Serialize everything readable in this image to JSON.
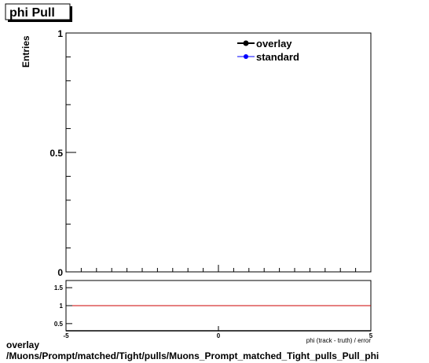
{
  "title_box": "phi Pull",
  "footer": {
    "line1": "overlay",
    "line2": "/Muons/Prompt/matched/Tight/pulls/Muons_Prompt_matched_Tight_pulls_Pull_phi"
  },
  "colors": {
    "overlay": "#000000",
    "standard": "#0000ff",
    "ratio_line": "#cc0000"
  },
  "chart_data": [
    {
      "type": "line",
      "title": "phi Pull",
      "xlabel": "",
      "ylabel": "Entries",
      "ylim": [
        0,
        1
      ],
      "y_ticks": [
        "0",
        "0.5",
        "1"
      ],
      "grid": false,
      "legend_position": "top-right",
      "series": [
        {
          "name": "overlay",
          "values": []
        },
        {
          "name": "standard",
          "values": []
        }
      ]
    },
    {
      "type": "line",
      "xlabel": "phi (track - truth) / error",
      "ylim": [
        0.3,
        1.7
      ],
      "xlim": [
        -5,
        5
      ],
      "x_ticks": [
        "-5",
        "0",
        "5"
      ],
      "y_ticks": [
        "0.5",
        "1",
        "1.5"
      ],
      "reference_line": 1
    }
  ]
}
